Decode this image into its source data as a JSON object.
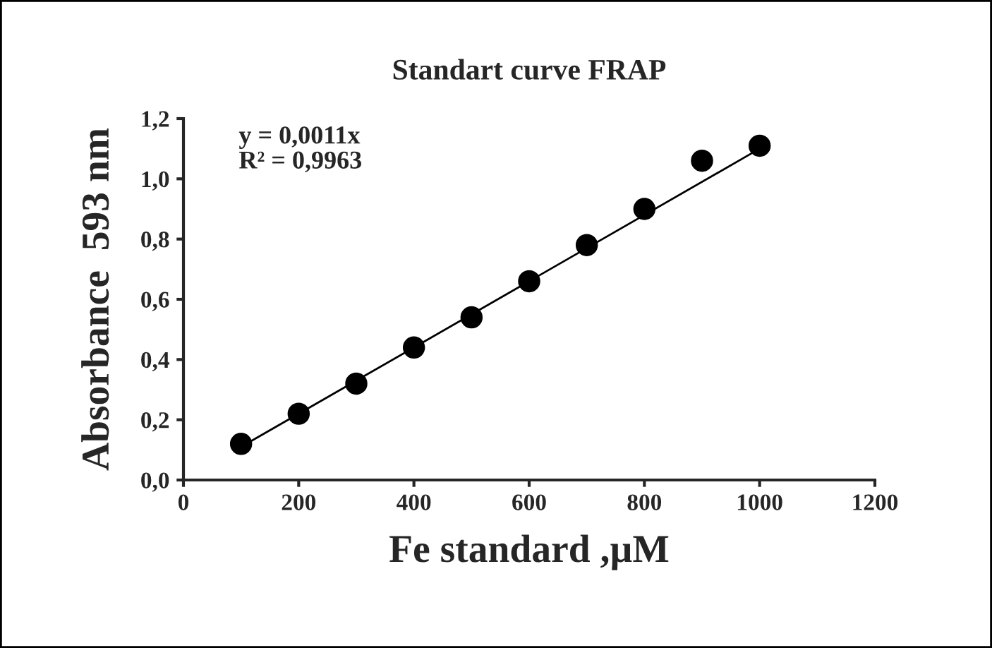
{
  "chart_data": {
    "type": "scatter",
    "title": "Standart curve FRAP",
    "xlabel": "Fe standard ,µM",
    "ylabel": "Absorbance  593 nm",
    "annotations": [
      "y = 0,0011x\nR² = 0,9963"
    ],
    "x": [
      100,
      200,
      300,
      400,
      500,
      600,
      700,
      800,
      900,
      1000
    ],
    "series": [
      {
        "marker": "circle",
        "color": "#000000",
        "values": [
          0.12,
          0.22,
          0.32,
          0.44,
          0.54,
          0.66,
          0.78,
          0.9,
          1.06,
          1.11
        ]
      },
      {
        "type": "line",
        "color": "#000000",
        "x": [
          100,
          1000
        ],
        "values": [
          0.11,
          1.1
        ]
      }
    ],
    "xlim": [
      0,
      1200
    ],
    "xticks": [
      0,
      200,
      400,
      600,
      800,
      1000,
      1200
    ],
    "ylim": [
      0,
      1.2
    ],
    "yticks": [
      {
        "value": 0,
        "label": "0,0"
      },
      {
        "value": 0.2,
        "label": "0,2"
      },
      {
        "value": 0.4,
        "label": "0,4"
      },
      {
        "value": 0.6,
        "label": "0,6"
      },
      {
        "value": 0.8,
        "label": "0,8"
      },
      {
        "value": 1.0,
        "label": "1,0"
      },
      {
        "value": 1.2,
        "label": "1,2"
      }
    ],
    "grid": false,
    "legend": false
  }
}
